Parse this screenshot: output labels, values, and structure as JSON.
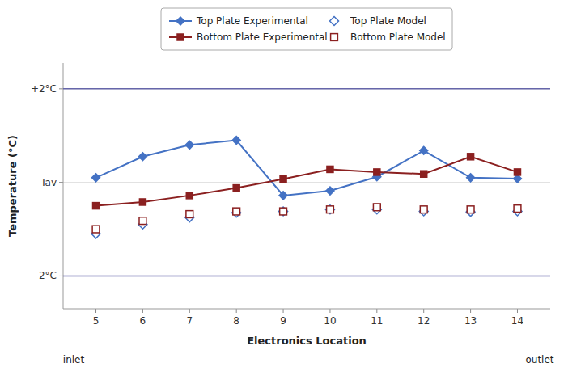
{
  "chart_data": {
    "type": "line",
    "x": [
      5,
      6,
      7,
      8,
      9,
      10,
      11,
      12,
      13,
      14
    ],
    "series": [
      {
        "name": "Top Plate Experimental",
        "color": "#4472C4",
        "marker": "diamond",
        "line_style": "solid",
        "values": [
          0.1,
          0.55,
          0.8,
          0.9,
          -0.28,
          -0.18,
          0.12,
          0.68,
          0.1,
          0.08
        ]
      },
      {
        "name": "Bottom Plate Experimental",
        "color": "#8B2020",
        "marker": "square",
        "line_style": "solid",
        "values": [
          -0.5,
          -0.42,
          -0.28,
          -0.12,
          0.07,
          0.28,
          0.22,
          0.18,
          0.55,
          0.22
        ]
      },
      {
        "name": "Top Plate Model",
        "color": "#4472C4",
        "marker": "diamond",
        "line_style": "none",
        "values": [
          -1.1,
          -0.9,
          -0.75,
          -0.65,
          -0.62,
          -0.58,
          -0.58,
          -0.62,
          -0.63,
          -0.62
        ]
      },
      {
        "name": "Bottom Plate Model",
        "color": "#8B2020",
        "marker": "square",
        "line_style": "none",
        "values": [
          -1.0,
          -0.82,
          -0.68,
          -0.62,
          -0.62,
          -0.58,
          -0.53,
          -0.58,
          -0.58,
          -0.56
        ]
      }
    ],
    "xlabel": "Electronics Location",
    "ylabel": "Temperature (°C)",
    "xlim": [
      4.3,
      14.7
    ],
    "xticks": [
      5,
      6,
      7,
      8,
      9,
      10,
      11,
      12,
      13,
      14
    ],
    "ylim": [
      -2.7,
      2.55
    ],
    "yticks": [
      {
        "value": 2.0,
        "label": "+2°C"
      },
      {
        "value": 0.0,
        "label": "Tav"
      },
      {
        "value": -2.0,
        "label": "-2°C"
      }
    ],
    "hlines": [
      2.0,
      -2.0
    ],
    "hline_color": "#6666AA",
    "annotations": [
      "inlet",
      "outlet"
    ],
    "grid": true,
    "legend": "top"
  }
}
